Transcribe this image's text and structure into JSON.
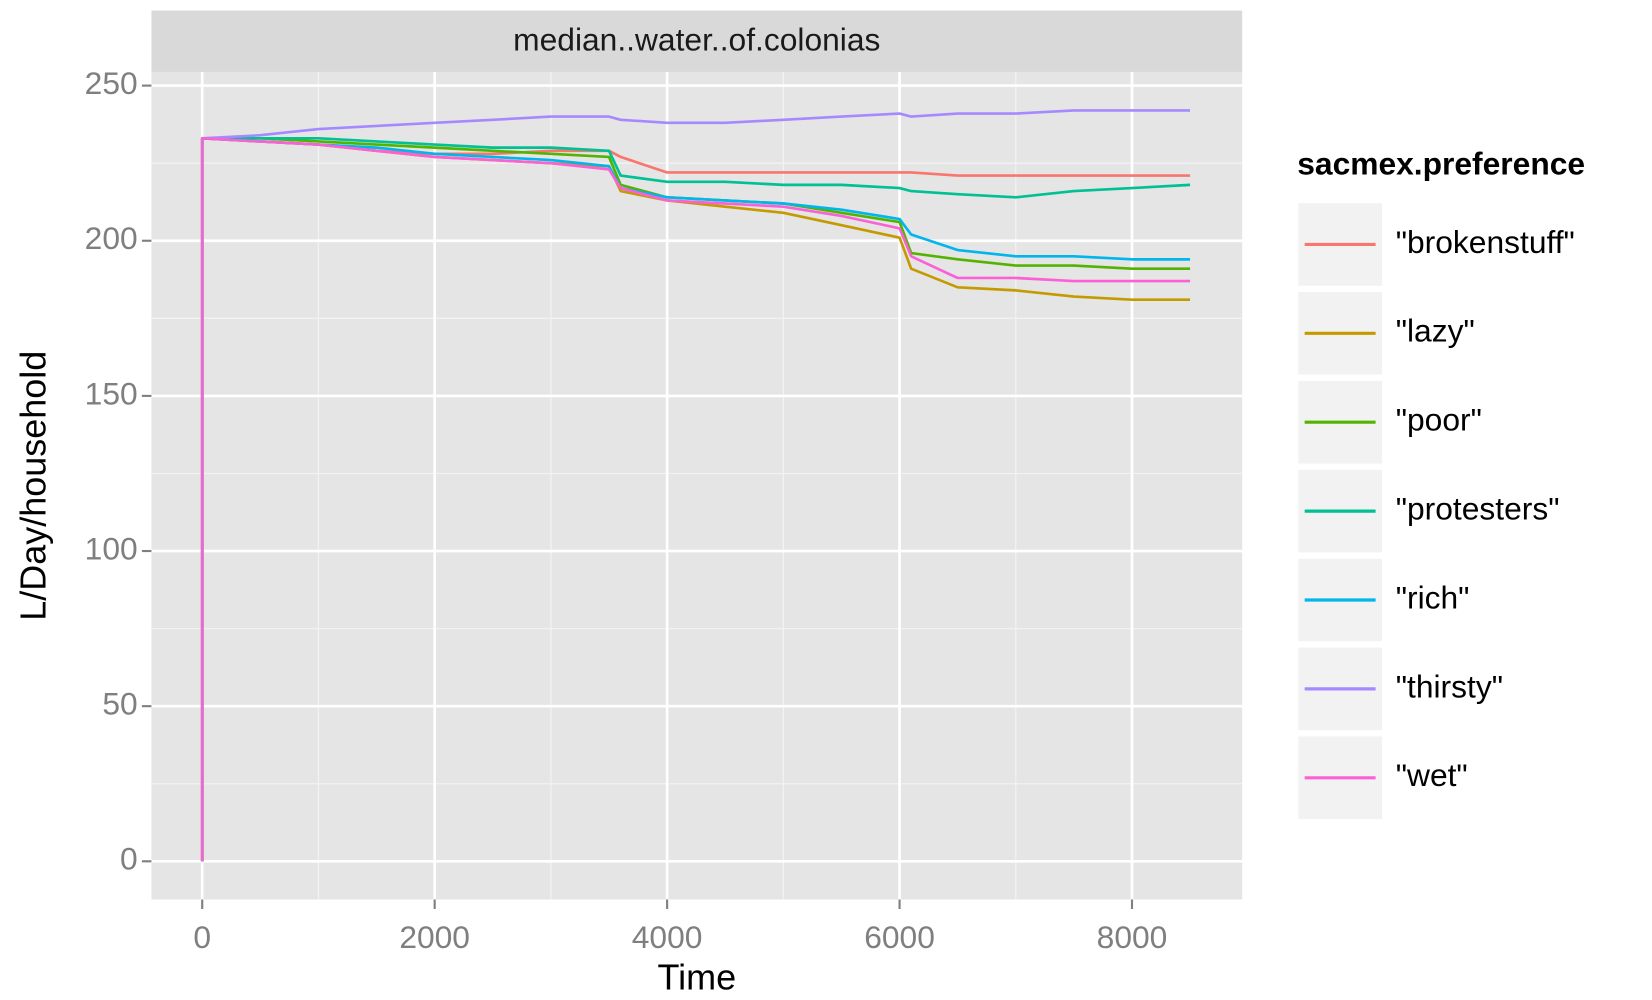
{
  "chart_data": {
    "type": "line",
    "strip": "median..water..of.colonias",
    "x_label": "Time",
    "y_label": "L/Day/household",
    "legend_title": "sacmex.preference",
    "xlim": [
      -437,
      8948
    ],
    "ylim": [
      -12.3,
      254.4
    ],
    "xticks": [
      0,
      2000,
      4000,
      6000,
      8000
    ],
    "yticks": [
      0,
      50,
      100,
      150,
      200,
      250
    ],
    "grid": true,
    "legend": "right",
    "x": [
      0,
      0,
      500,
      1000,
      1500,
      2000,
      2500,
      3000,
      3500,
      3600,
      4000,
      4500,
      5000,
      5500,
      6000,
      6100,
      6500,
      7000,
      7500,
      8000,
      8500
    ],
    "series": [
      {
        "name": "\"brokenstuff\"",
        "color": "#f8766d",
        "values": [
          0,
          233,
          232,
          231,
          229,
          228,
          228,
          229,
          229,
          227,
          222,
          222,
          222,
          222,
          222,
          222,
          221,
          221,
          221,
          221,
          221
        ]
      },
      {
        "name": "\"lazy\"",
        "color": "#c49a00",
        "values": [
          0,
          233,
          232,
          231,
          229,
          227,
          226,
          225,
          224,
          216,
          213,
          211,
          209,
          205,
          201,
          191,
          185,
          184,
          182,
          181,
          181
        ]
      },
      {
        "name": "\"poor\"",
        "color": "#53b400",
        "values": [
          0,
          233,
          233,
          232,
          231,
          230,
          229,
          228,
          227,
          218,
          214,
          213,
          212,
          209,
          206,
          196,
          194,
          192,
          192,
          191,
          191
        ]
      },
      {
        "name": "\"protesters\"",
        "color": "#00c094",
        "values": [
          0,
          233,
          233,
          233,
          232,
          231,
          230,
          230,
          229,
          221,
          219,
          219,
          218,
          218,
          217,
          216,
          215,
          214,
          216,
          217,
          218
        ]
      },
      {
        "name": "\"rich\"",
        "color": "#00b6eb",
        "values": [
          0,
          233,
          232,
          231,
          230,
          228,
          227,
          226,
          224,
          217,
          214,
          213,
          212,
          210,
          207,
          202,
          197,
          195,
          195,
          194,
          194
        ]
      },
      {
        "name": "\"thirsty\"",
        "color": "#a58aff",
        "values": [
          0,
          233,
          234,
          236,
          237,
          238,
          239,
          240,
          240,
          239,
          238,
          238,
          239,
          240,
          241,
          240,
          241,
          241,
          242,
          242,
          242
        ]
      },
      {
        "name": "\"wet\"",
        "color": "#fb61d7",
        "values": [
          0,
          233,
          232,
          231,
          229,
          227,
          226,
          225,
          223,
          217,
          213,
          212,
          211,
          208,
          204,
          195,
          188,
          188,
          187,
          187,
          187
        ]
      }
    ]
  }
}
